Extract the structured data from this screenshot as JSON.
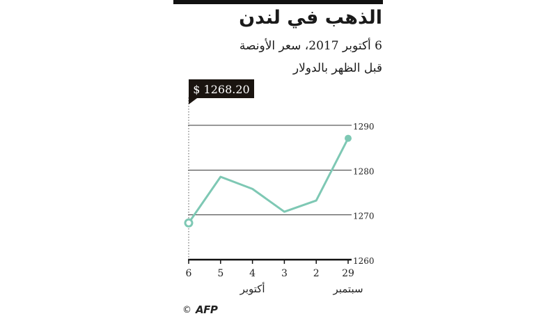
{
  "header": {
    "title": "الذهب في لندن",
    "subtitle_line1": "6 أكتوبر 2017، سعر الأونصة",
    "subtitle_line2": "قبل الظهر بالدولار"
  },
  "chart_data": {
    "type": "line",
    "x": [
      "29",
      "2",
      "3",
      "4",
      "5",
      "6"
    ],
    "month_labels": [
      {
        "label": "سبتمبر",
        "under": "29"
      },
      {
        "label": "أكتوبر",
        "under": "4"
      }
    ],
    "series": [
      {
        "values": [
          1287.1,
          1273.2,
          1270.7,
          1275.8,
          1278.5,
          1268.2
        ],
        "color": "#7ec8b4"
      }
    ],
    "ylim": [
      1260,
      1290
    ],
    "yticks": [
      "1260",
      "1270",
      "1280",
      "1290"
    ],
    "highlight": {
      "label": "$ 1268.20",
      "value": 1268.2,
      "at": "6"
    },
    "grid": true,
    "x_axis_direction": "right-to-left"
  },
  "footer": {
    "copyright": "©",
    "logo": "AFP"
  }
}
